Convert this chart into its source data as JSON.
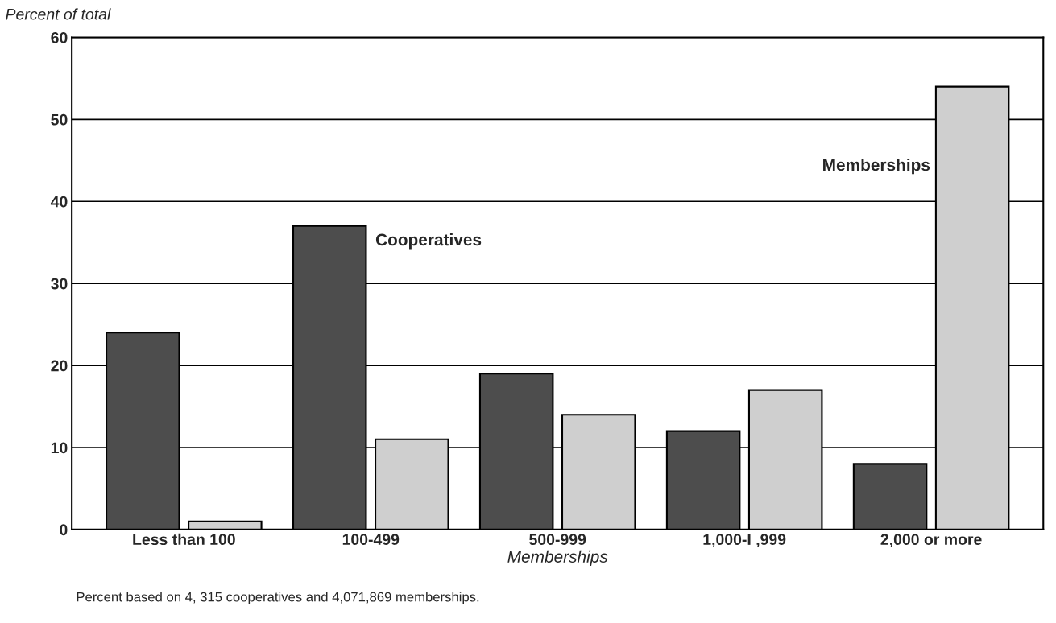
{
  "chart_data": {
    "type": "bar",
    "ylabel": "Percent of total",
    "xlabel": "Memberships",
    "categories": [
      "Less than 100",
      "100-499",
      "500-999",
      "1,000-I ,999",
      "2,000 or more"
    ],
    "series": [
      {
        "name": "Cooperatives",
        "color": "#4d4d4d",
        "values": [
          24,
          37,
          19,
          12,
          8
        ]
      },
      {
        "name": "Memberships",
        "color": "#cfcfcf",
        "values": [
          1,
          11,
          14,
          17,
          54
        ]
      }
    ],
    "ylim": [
      0,
      60
    ],
    "yticks": [
      0,
      10,
      20,
      30,
      40,
      50,
      60
    ],
    "grid": "y",
    "annotations": [
      "Percent based on 4, 315 cooperatives and 4,071,869 memberships."
    ]
  }
}
